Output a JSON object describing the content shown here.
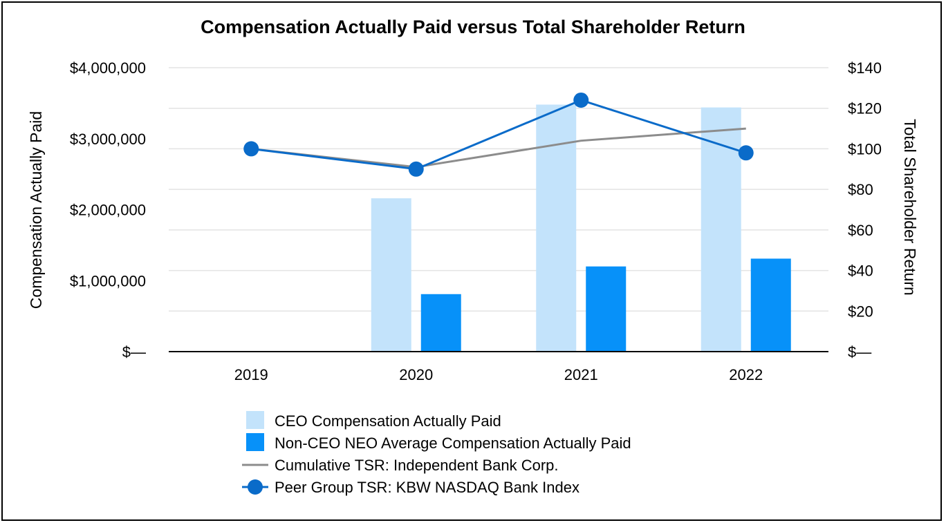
{
  "chart_data": {
    "type": "bar",
    "title": "Compensation Actually Paid versus Total Shareholder Return",
    "categories": [
      "2019",
      "2020",
      "2021",
      "2022"
    ],
    "ylabel": "Compensation Actually Paid",
    "y2label": "Total Shareholder Return",
    "ylim": [
      0,
      4000000
    ],
    "y2lim": [
      0,
      140
    ],
    "yticks": [
      "$—",
      "$1,000,000",
      "$2,000,000",
      "$3,000,000",
      "$4,000,000"
    ],
    "y2ticks": [
      "$—",
      "$20",
      "$40",
      "$60",
      "$80",
      "$100",
      "$120",
      "$140"
    ],
    "grid": true,
    "legend_position": "bottom",
    "series": [
      {
        "name": "CEO Compensation Actually Paid",
        "kind": "bar",
        "axis": "left",
        "color": "#C3E3FB",
        "values": [
          null,
          2160000,
          3480000,
          3440000
        ]
      },
      {
        "name": "Non-CEO NEO Average Compensation Actually Paid",
        "kind": "bar",
        "axis": "left",
        "color": "#0791F9",
        "values": [
          null,
          810000,
          1200000,
          1310000
        ]
      },
      {
        "name": "Cumulative TSR: Independent Bank Corp.",
        "kind": "line",
        "axis": "right",
        "color": "#8C8C8C",
        "values": [
          100,
          91,
          104,
          110
        ]
      },
      {
        "name": "Peer Group TSR: KBW NASDAQ Bank Index",
        "kind": "line-marker",
        "axis": "right",
        "color": "#0A6BC9",
        "values": [
          100,
          90,
          124,
          98
        ]
      }
    ]
  }
}
